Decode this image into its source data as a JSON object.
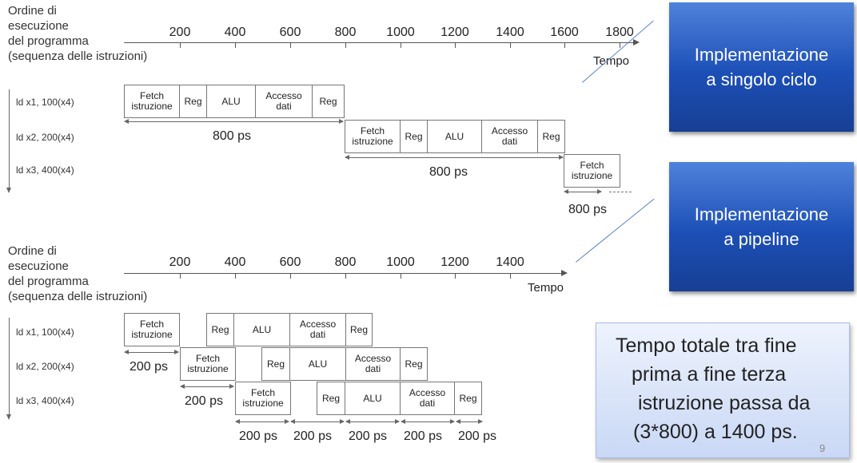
{
  "top_diagram": {
    "axis_title": [
      "Ordine di",
      "esecuzione",
      "del programma",
      "(sequenza delle istruzioni)"
    ],
    "ticks": [
      "200",
      "400",
      "600",
      "800",
      "1000",
      "1200",
      "1400",
      "1600",
      "1800"
    ],
    "time_label": "Tempo",
    "instructions": [
      "ld x1, 100(x4)",
      "ld x2, 200(x4)",
      "ld x3, 400(x4)"
    ],
    "stages": [
      "Fetch\nistruzione",
      "Reg",
      "ALU",
      "Accesso\ndati",
      "Reg"
    ],
    "duration_label": "800 ps"
  },
  "bottom_diagram": {
    "axis_title": [
      "Ordine di",
      "esecuzione",
      "del programma",
      "(sequenza delle istruzioni)"
    ],
    "ticks": [
      "200",
      "400",
      "600",
      "800",
      "1000",
      "1200",
      "1400"
    ],
    "time_label": "Tempo",
    "instructions": [
      "ld x1, 100(x4)",
      "ld x2, 200(x4)",
      "ld x3, 400(x4)"
    ],
    "stages": [
      "Fetch\nistruzione",
      "Reg",
      "ALU",
      "Accesso\ndati",
      "Reg"
    ],
    "stage_label": "200 ps"
  },
  "callouts": {
    "single_cycle": [
      "Implementazione",
      "a singolo ciclo"
    ],
    "pipeline": [
      "Implementazione",
      "a pipeline"
    ]
  },
  "note": {
    "lines": [
      "Tempo totale tra fine",
      "prima a fine terza",
      "istruzione passa da",
      "(3*800) a 1400 ps."
    ]
  },
  "page_number": "9",
  "colors": {
    "callout_top": "#4f82db",
    "callout_bottom": "#173f94",
    "note_background": "#dfe8fa",
    "connector_line": "#5a7fc7"
  }
}
